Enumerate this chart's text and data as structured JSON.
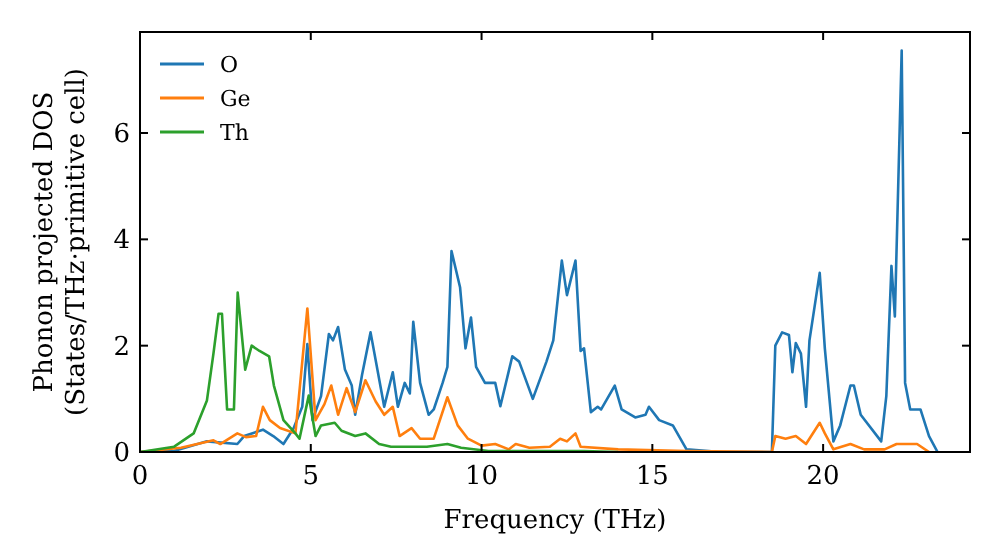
{
  "chart_data": {
    "type": "line",
    "xlabel": "Frequency (THz)",
    "ylabel": "Phonon projected DOS\n(States/THz·primitive cell)",
    "xlim": [
      0,
      24.3
    ],
    "ylim": [
      0,
      7.9
    ],
    "xticks": [
      0,
      5,
      10,
      15,
      20
    ],
    "yticks": [
      0,
      2,
      4,
      6
    ],
    "legend": "top left",
    "grid": false,
    "series": [
      {
        "name": "O",
        "color": "#1f77b4",
        "x": [
          0,
          1,
          1.96,
          2.85,
          3.05,
          3.6,
          3.9,
          4.2,
          4.5,
          4.75,
          4.9,
          5.05,
          5.3,
          5.53,
          5.65,
          5.8,
          6.0,
          6.2,
          6.3,
          6.5,
          6.75,
          6.95,
          7.15,
          7.4,
          7.55,
          7.75,
          7.9,
          8.0,
          8.2,
          8.45,
          8.6,
          8.86,
          9.0,
          9.12,
          9.37,
          9.53,
          9.69,
          9.84,
          10.1,
          10.4,
          10.55,
          10.9,
          11.1,
          11.5,
          11.9,
          12.1,
          12.35,
          12.5,
          12.75,
          12.9,
          13.0,
          13.2,
          13.4,
          13.5,
          13.9,
          14.1,
          14.5,
          14.8,
          14.9,
          15.2,
          15.6,
          16.0,
          17,
          18.5,
          18.6,
          18.8,
          19.0,
          19.1,
          19.2,
          19.35,
          19.5,
          19.6,
          19.9,
          20.05,
          20.3,
          20.5,
          20.8,
          20.9,
          21.1,
          21.7,
          21.85,
          22.0,
          22.1,
          22.3,
          22.4,
          22.55,
          22.85,
          23.1,
          23.35
        ],
        "values": [
          0,
          0.02,
          0.2,
          0.15,
          0.3,
          0.42,
          0.3,
          0.15,
          0.45,
          0.85,
          2.03,
          0.6,
          1.05,
          2.22,
          2.1,
          2.35,
          1.55,
          1.25,
          0.7,
          1.45,
          2.25,
          1.55,
          0.85,
          1.5,
          0.85,
          1.3,
          1.1,
          2.45,
          1.3,
          0.7,
          0.8,
          1.3,
          1.6,
          3.78,
          3.1,
          1.95,
          2.53,
          1.6,
          1.3,
          1.3,
          0.86,
          1.8,
          1.7,
          1.0,
          1.7,
          2.1,
          3.6,
          2.95,
          3.6,
          1.9,
          1.95,
          0.75,
          0.85,
          0.8,
          1.25,
          0.8,
          0.65,
          0.7,
          0.85,
          0.6,
          0.5,
          0.05,
          0,
          0,
          2.0,
          2.25,
          2.2,
          1.5,
          2.05,
          1.85,
          0.85,
          2.1,
          3.37,
          1.95,
          0.2,
          0.5,
          1.25,
          1.25,
          0.7,
          0.2,
          1.05,
          3.5,
          2.55,
          7.55,
          1.3,
          0.8,
          0.8,
          0.3,
          0
        ]
      },
      {
        "name": "Ge",
        "color": "#ff7f0e",
        "x": [
          0,
          1.2,
          2.15,
          2.35,
          2.85,
          3.1,
          3.4,
          3.6,
          3.8,
          4.1,
          4.55,
          4.9,
          5.14,
          5.4,
          5.6,
          5.8,
          6.05,
          6.3,
          6.6,
          6.9,
          7.15,
          7.4,
          7.6,
          7.95,
          8.2,
          8.6,
          9.0,
          9.3,
          9.6,
          10.0,
          10.4,
          10.8,
          11.0,
          11.4,
          12.0,
          12.3,
          12.5,
          12.75,
          12.9,
          14.0,
          16,
          18.5,
          18.6,
          18.9,
          19.2,
          19.5,
          19.9,
          20.05,
          20.3,
          20.8,
          21.2,
          21.8,
          22.15,
          22.75,
          23.1
        ],
        "values": [
          0,
          0.08,
          0.22,
          0.15,
          0.35,
          0.28,
          0.3,
          0.85,
          0.6,
          0.45,
          0.35,
          2.7,
          0.6,
          0.9,
          1.25,
          0.7,
          1.2,
          0.75,
          1.35,
          0.95,
          0.7,
          0.85,
          0.3,
          0.45,
          0.25,
          0.25,
          1.03,
          0.5,
          0.25,
          0.12,
          0.15,
          0.05,
          0.15,
          0.08,
          0.1,
          0.25,
          0.2,
          0.35,
          0.1,
          0.05,
          0.02,
          0,
          0.3,
          0.25,
          0.3,
          0.15,
          0.55,
          0.35,
          0.05,
          0.15,
          0.05,
          0.05,
          0.15,
          0.15,
          0
        ]
      },
      {
        "name": "Th",
        "color": "#2ca02c",
        "x": [
          0,
          1.0,
          1.57,
          1.96,
          2.15,
          2.3,
          2.4,
          2.55,
          2.75,
          2.86,
          3.08,
          3.27,
          3.5,
          3.78,
          3.92,
          4.2,
          4.55,
          4.67,
          4.94,
          5.14,
          5.3,
          5.7,
          5.9,
          6.3,
          6.6,
          7.0,
          7.35,
          7.8,
          8.4,
          9.0,
          9.4,
          10.2,
          13,
          14
        ],
        "values": [
          0,
          0.1,
          0.35,
          0.97,
          1.85,
          2.6,
          2.6,
          0.8,
          0.8,
          3.0,
          1.55,
          2.0,
          1.9,
          1.8,
          1.25,
          0.6,
          0.35,
          0.25,
          1.06,
          0.3,
          0.5,
          0.55,
          0.4,
          0.3,
          0.35,
          0.15,
          0.1,
          0.1,
          0.1,
          0.15,
          0.08,
          0.02,
          0.02,
          0
        ]
      }
    ]
  }
}
